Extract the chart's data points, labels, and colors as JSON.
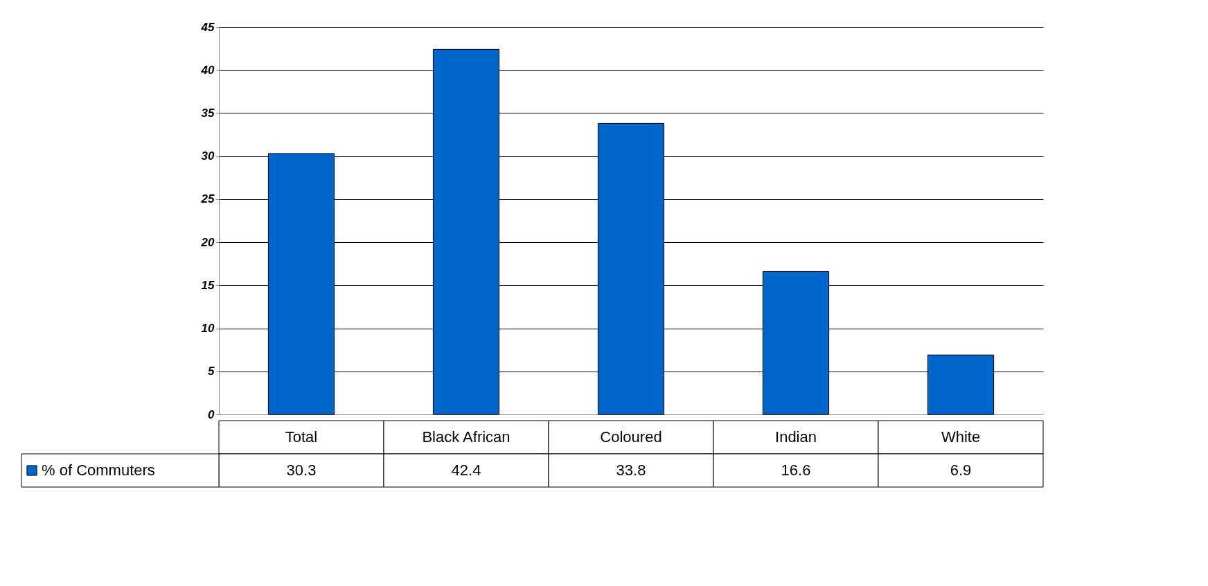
{
  "chart_data": {
    "type": "bar",
    "categories": [
      "Total",
      "Black African",
      "Coloured",
      "Indian",
      "White"
    ],
    "series": [
      {
        "name": "% of Commuters",
        "color": "#0066cc",
        "values": [
          30.3,
          42.4,
          33.8,
          16.6,
          6.9
        ]
      }
    ],
    "ylim": [
      0,
      45
    ],
    "yticks": [
      0,
      5,
      10,
      15,
      20,
      25,
      30,
      35,
      40,
      45
    ],
    "grid": "y",
    "data_labels": true,
    "legend": "bottom left"
  }
}
